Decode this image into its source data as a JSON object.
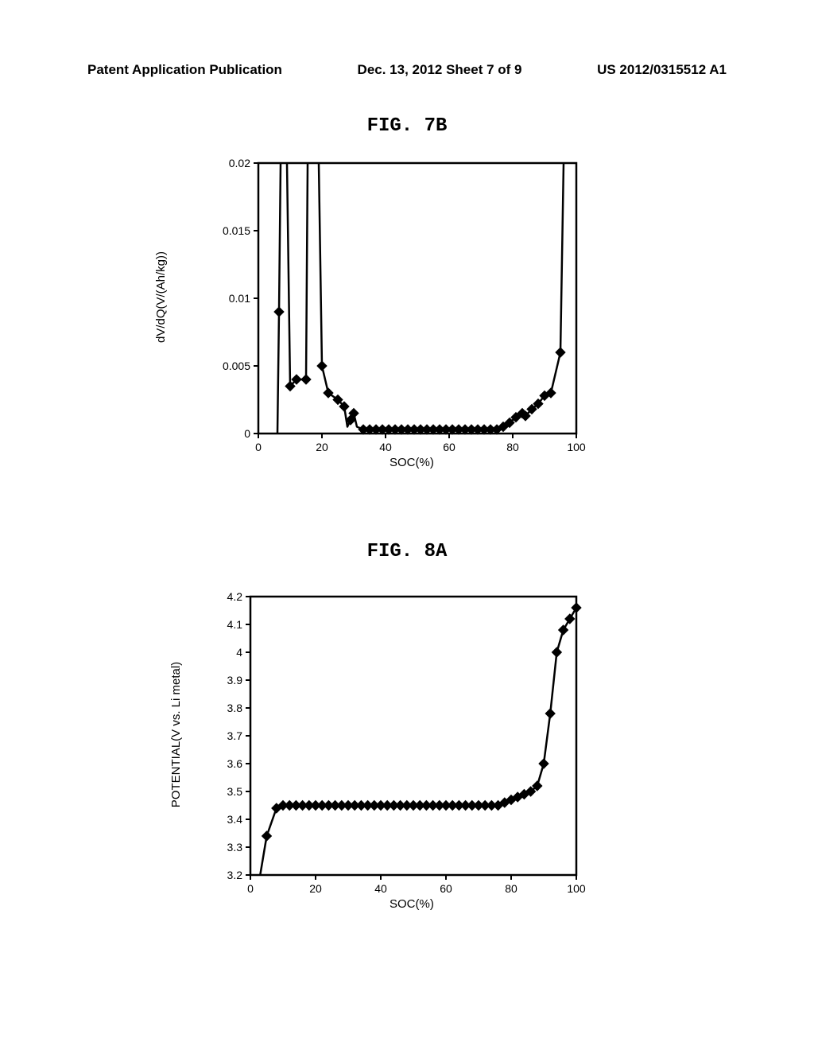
{
  "header": {
    "left": "Patent Application Publication",
    "center": "Dec. 13, 2012  Sheet 7 of 9",
    "right": "US 2012/0315512 A1"
  },
  "fig7b": {
    "title": "FIG. 7B",
    "type": "line-scatter",
    "xlabel": "SOC(%)",
    "ylabel": "dV/dQ(V/(Ah/kg))",
    "xlim": [
      0,
      100
    ],
    "ylim": [
      0,
      0.02
    ],
    "xticks": [
      0,
      20,
      40,
      60,
      80,
      100
    ],
    "yticks": [
      0,
      0.005,
      0.01,
      0.015,
      0.02
    ],
    "ytick_labels": [
      "0",
      "0.005",
      "0.01",
      "0.015",
      "0.02"
    ],
    "background_color": "#ffffff",
    "axis_color": "#000000",
    "line_color": "#000000",
    "marker_color": "#000000",
    "marker": "diamond",
    "marker_size": 6,
    "line_width": 2.5,
    "tick_fontsize": 14,
    "label_fontsize": 15,
    "line_segments": [
      [
        [
          6,
          0
        ],
        [
          6.5,
          0.009
        ],
        [
          7,
          0.02
        ]
      ],
      [
        [
          9,
          0.02
        ],
        [
          10,
          0.0035
        ],
        [
          12,
          0.004
        ],
        [
          15,
          0.004
        ],
        [
          15.5,
          0.02
        ]
      ],
      [
        [
          19,
          0.02
        ],
        [
          20,
          0.005
        ],
        [
          22,
          0.003
        ],
        [
          25,
          0.0025
        ],
        [
          27,
          0.002
        ],
        [
          28,
          0.0005
        ],
        [
          29,
          0.001
        ],
        [
          30,
          0.0015
        ],
        [
          31,
          0.0005
        ],
        [
          33,
          0.0003
        ],
        [
          35,
          0.0003
        ],
        [
          37,
          0.0003
        ],
        [
          39,
          0.0003
        ],
        [
          41,
          0.0003
        ],
        [
          43,
          0.0003
        ],
        [
          45,
          0.0003
        ],
        [
          47,
          0.0003
        ],
        [
          49,
          0.0003
        ],
        [
          51,
          0.0003
        ],
        [
          53,
          0.0003
        ],
        [
          55,
          0.0003
        ],
        [
          57,
          0.0003
        ],
        [
          59,
          0.0003
        ],
        [
          61,
          0.0003
        ],
        [
          63,
          0.0003
        ],
        [
          65,
          0.0003
        ],
        [
          67,
          0.0003
        ],
        [
          69,
          0.0003
        ],
        [
          71,
          0.0003
        ],
        [
          73,
          0.0003
        ],
        [
          75,
          0.0003
        ],
        [
          77,
          0.0005
        ],
        [
          79,
          0.0008
        ],
        [
          81,
          0.0012
        ],
        [
          83,
          0.0015
        ],
        [
          84,
          0.0013
        ],
        [
          86,
          0.0018
        ],
        [
          88,
          0.0022
        ],
        [
          90,
          0.0028
        ],
        [
          92,
          0.003
        ],
        [
          95,
          0.006
        ],
        [
          96,
          0.02
        ]
      ]
    ],
    "points": [
      [
        6.5,
        0.009
      ],
      [
        10,
        0.0035
      ],
      [
        12,
        0.004
      ],
      [
        15,
        0.004
      ],
      [
        20,
        0.005
      ],
      [
        22,
        0.003
      ],
      [
        25,
        0.0025
      ],
      [
        27,
        0.002
      ],
      [
        29,
        0.001
      ],
      [
        30,
        0.0015
      ],
      [
        33,
        0.0003
      ],
      [
        35,
        0.0003
      ],
      [
        37,
        0.0003
      ],
      [
        39,
        0.0003
      ],
      [
        41,
        0.0003
      ],
      [
        43,
        0.0003
      ],
      [
        45,
        0.0003
      ],
      [
        47,
        0.0003
      ],
      [
        49,
        0.0003
      ],
      [
        51,
        0.0003
      ],
      [
        53,
        0.0003
      ],
      [
        55,
        0.0003
      ],
      [
        57,
        0.0003
      ],
      [
        59,
        0.0003
      ],
      [
        61,
        0.0003
      ],
      [
        63,
        0.0003
      ],
      [
        65,
        0.0003
      ],
      [
        67,
        0.0003
      ],
      [
        69,
        0.0003
      ],
      [
        71,
        0.0003
      ],
      [
        73,
        0.0003
      ],
      [
        75,
        0.0003
      ],
      [
        77,
        0.0005
      ],
      [
        79,
        0.0008
      ],
      [
        81,
        0.0012
      ],
      [
        83,
        0.0015
      ],
      [
        84,
        0.0013
      ],
      [
        86,
        0.0018
      ],
      [
        88,
        0.0022
      ],
      [
        90,
        0.0028
      ],
      [
        92,
        0.003
      ],
      [
        95,
        0.006
      ]
    ]
  },
  "fig8a": {
    "title": "FIG. 8A",
    "type": "line-scatter",
    "xlabel": "SOC(%)",
    "ylabel": "POTENTIAL(V vs. Li metal)",
    "xlim": [
      0,
      100
    ],
    "ylim": [
      3.2,
      4.2
    ],
    "xticks": [
      0,
      20,
      40,
      60,
      80,
      100
    ],
    "yticks": [
      3.2,
      3.3,
      3.4,
      3.5,
      3.6,
      3.7,
      3.8,
      3.9,
      4.0,
      4.1,
      4.2
    ],
    "ytick_labels": [
      "3.2",
      "3.3",
      "3.4",
      "3.5",
      "3.6",
      "3.7",
      "3.8",
      "3.9",
      "4",
      "4.1",
      "4.2"
    ],
    "background_color": "#ffffff",
    "axis_color": "#000000",
    "line_color": "#000000",
    "marker_color": "#000000",
    "marker": "diamond",
    "marker_size": 6,
    "line_width": 2.5,
    "tick_fontsize": 14,
    "label_fontsize": 15,
    "line_segments": [
      [
        [
          3,
          3.2
        ],
        [
          5,
          3.34
        ],
        [
          8,
          3.44
        ],
        [
          10,
          3.45
        ],
        [
          12,
          3.45
        ],
        [
          14,
          3.45
        ],
        [
          16,
          3.45
        ],
        [
          18,
          3.45
        ],
        [
          20,
          3.45
        ],
        [
          22,
          3.45
        ],
        [
          24,
          3.45
        ],
        [
          26,
          3.45
        ],
        [
          28,
          3.45
        ],
        [
          30,
          3.45
        ],
        [
          32,
          3.45
        ],
        [
          34,
          3.45
        ],
        [
          36,
          3.45
        ],
        [
          38,
          3.45
        ],
        [
          40,
          3.45
        ],
        [
          42,
          3.45
        ],
        [
          44,
          3.45
        ],
        [
          46,
          3.45
        ],
        [
          48,
          3.45
        ],
        [
          50,
          3.45
        ],
        [
          52,
          3.45
        ],
        [
          54,
          3.45
        ],
        [
          56,
          3.45
        ],
        [
          58,
          3.45
        ],
        [
          60,
          3.45
        ],
        [
          62,
          3.45
        ],
        [
          64,
          3.45
        ],
        [
          66,
          3.45
        ],
        [
          68,
          3.45
        ],
        [
          70,
          3.45
        ],
        [
          72,
          3.45
        ],
        [
          74,
          3.45
        ],
        [
          76,
          3.45
        ],
        [
          78,
          3.46
        ],
        [
          80,
          3.47
        ],
        [
          82,
          3.48
        ],
        [
          84,
          3.49
        ],
        [
          86,
          3.5
        ],
        [
          88,
          3.52
        ],
        [
          90,
          3.6
        ],
        [
          92,
          3.78
        ],
        [
          94,
          4.0
        ],
        [
          96,
          4.08
        ],
        [
          98,
          4.12
        ],
        [
          100,
          4.16
        ]
      ]
    ],
    "points": [
      [
        5,
        3.34
      ],
      [
        8,
        3.44
      ],
      [
        10,
        3.45
      ],
      [
        12,
        3.45
      ],
      [
        14,
        3.45
      ],
      [
        16,
        3.45
      ],
      [
        18,
        3.45
      ],
      [
        20,
        3.45
      ],
      [
        22,
        3.45
      ],
      [
        24,
        3.45
      ],
      [
        26,
        3.45
      ],
      [
        28,
        3.45
      ],
      [
        30,
        3.45
      ],
      [
        32,
        3.45
      ],
      [
        34,
        3.45
      ],
      [
        36,
        3.45
      ],
      [
        38,
        3.45
      ],
      [
        40,
        3.45
      ],
      [
        42,
        3.45
      ],
      [
        44,
        3.45
      ],
      [
        46,
        3.45
      ],
      [
        48,
        3.45
      ],
      [
        50,
        3.45
      ],
      [
        52,
        3.45
      ],
      [
        54,
        3.45
      ],
      [
        56,
        3.45
      ],
      [
        58,
        3.45
      ],
      [
        60,
        3.45
      ],
      [
        62,
        3.45
      ],
      [
        64,
        3.45
      ],
      [
        66,
        3.45
      ],
      [
        68,
        3.45
      ],
      [
        70,
        3.45
      ],
      [
        72,
        3.45
      ],
      [
        74,
        3.45
      ],
      [
        76,
        3.45
      ],
      [
        78,
        3.46
      ],
      [
        80,
        3.47
      ],
      [
        82,
        3.48
      ],
      [
        84,
        3.49
      ],
      [
        86,
        3.5
      ],
      [
        88,
        3.52
      ],
      [
        90,
        3.6
      ],
      [
        92,
        3.78
      ],
      [
        94,
        4.0
      ],
      [
        96,
        4.08
      ],
      [
        98,
        4.12
      ],
      [
        100,
        4.16
      ]
    ]
  }
}
